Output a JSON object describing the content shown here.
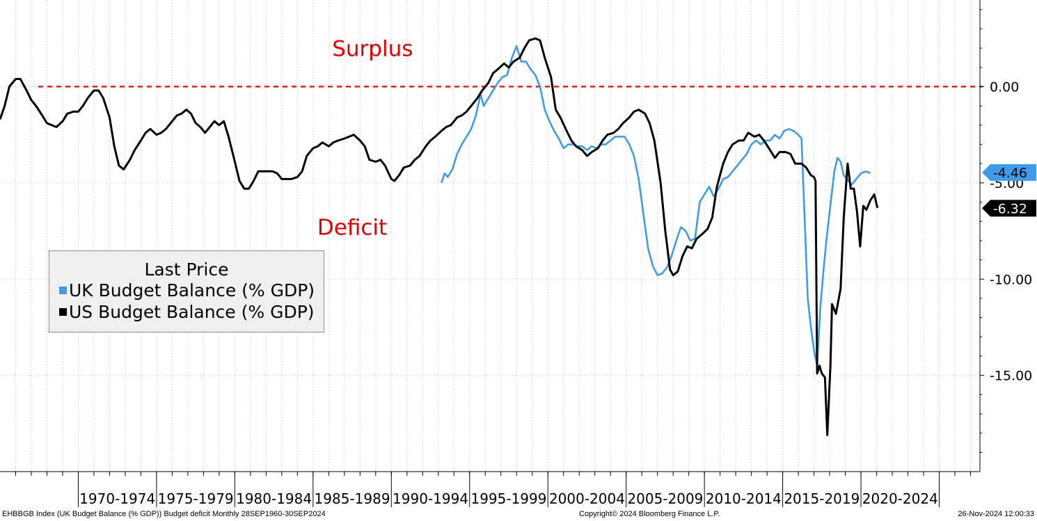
{
  "footer": {
    "left": "EHBBGB Index (UK Budget Balance (% GDP)) Budget deficit  Monthly 28SEP1960-30SEP2024",
    "center": "Copyright© 2024 Bloomberg Finance L.P.",
    "right": "26-Nov-2024 12:00:33"
  },
  "chart_data": {
    "type": "line",
    "x_unit": "year",
    "xlim": [
      1965.0,
      2027.6
    ],
    "ylim": [
      -20,
      4.5
    ],
    "y_ticks": [
      0,
      -5,
      -10,
      -15
    ],
    "y_tick_labels": [
      "0.00",
      "-5.00",
      "-10.00",
      "-15.00"
    ],
    "x_bands": [
      {
        "start": 1970,
        "end": 1975,
        "label": "1970-1974"
      },
      {
        "start": 1975,
        "end": 1980,
        "label": "1975-1979"
      },
      {
        "start": 1980,
        "end": 1985,
        "label": "1980-1984"
      },
      {
        "start": 1985,
        "end": 1990,
        "label": "1985-1989"
      },
      {
        "start": 1990,
        "end": 1995,
        "label": "1990-1994"
      },
      {
        "start": 1995,
        "end": 2000,
        "label": "1995-1999"
      },
      {
        "start": 2000,
        "end": 2005,
        "label": "2000-2004"
      },
      {
        "start": 2005,
        "end": 2010,
        "label": "2005-2009"
      },
      {
        "start": 2010,
        "end": 2015,
        "label": "2010-2014"
      },
      {
        "start": 2015,
        "end": 2020,
        "label": "2015-2019"
      },
      {
        "start": 2020,
        "end": 2025,
        "label": "2020-2024"
      }
    ],
    "grid": true,
    "reference_line": {
      "y": 0,
      "color": "#e00000",
      "style": "dashed"
    },
    "annotations": [
      {
        "text": "Surplus",
        "x": 1988.8,
        "y": 1.6,
        "color": "#e00000"
      },
      {
        "text": "Deficit",
        "x": 1987.5,
        "y": -7.7,
        "color": "#e00000"
      }
    ],
    "legend": {
      "title": "Last Price",
      "position": "middle-left",
      "entries": [
        {
          "label": "UK Budget Balance (% GDP)",
          "color": "#3f9ae8"
        },
        {
          "label": "US Budget Balance (% GDP)",
          "color": "#000000"
        }
      ]
    },
    "series": [
      {
        "name": "US Budget Balance (% GDP)",
        "color": "#000000",
        "last_value": -6.32,
        "last_label": "-6.32",
        "points": [
          [
            1965.0,
            -1.7
          ],
          [
            1965.3,
            -1.0
          ],
          [
            1965.6,
            0.0
          ],
          [
            1966.0,
            0.4
          ],
          [
            1966.3,
            0.4
          ],
          [
            1966.7,
            -0.2
          ],
          [
            1967.0,
            -0.7
          ],
          [
            1967.3,
            -1.0
          ],
          [
            1967.7,
            -1.5
          ],
          [
            1968.0,
            -1.9
          ],
          [
            1968.3,
            -2.0
          ],
          [
            1968.6,
            -2.1
          ],
          [
            1969.0,
            -1.8
          ],
          [
            1969.3,
            -1.4
          ],
          [
            1969.7,
            -1.3
          ],
          [
            1970.0,
            -1.3
          ],
          [
            1970.3,
            -1.0
          ],
          [
            1970.6,
            -0.6
          ],
          [
            1971.0,
            -0.2
          ],
          [
            1971.3,
            -0.2
          ],
          [
            1971.6,
            -0.6
          ],
          [
            1972.0,
            -1.6
          ],
          [
            1972.3,
            -3.1
          ],
          [
            1972.6,
            -4.1
          ],
          [
            1972.9,
            -4.3
          ],
          [
            1973.3,
            -3.8
          ],
          [
            1973.6,
            -3.3
          ],
          [
            1974.0,
            -2.8
          ],
          [
            1974.3,
            -2.4
          ],
          [
            1974.6,
            -2.2
          ],
          [
            1975.0,
            -2.5
          ],
          [
            1975.3,
            -2.4
          ],
          [
            1975.6,
            -2.2
          ],
          [
            1976.0,
            -1.8
          ],
          [
            1976.3,
            -1.5
          ],
          [
            1976.6,
            -1.4
          ],
          [
            1976.9,
            -1.2
          ],
          [
            1977.2,
            -1.4
          ],
          [
            1977.5,
            -1.9
          ],
          [
            1977.8,
            -2.1
          ],
          [
            1978.1,
            -2.4
          ],
          [
            1978.4,
            -2.1
          ],
          [
            1978.7,
            -1.8
          ],
          [
            1979.0,
            -2.0
          ],
          [
            1979.3,
            -1.8
          ],
          [
            1979.6,
            -2.6
          ],
          [
            1980.0,
            -3.9
          ],
          [
            1980.3,
            -4.9
          ],
          [
            1980.6,
            -5.3
          ],
          [
            1980.9,
            -5.3
          ],
          [
            1981.2,
            -4.9
          ],
          [
            1981.5,
            -4.4
          ],
          [
            1981.8,
            -4.4
          ],
          [
            1982.1,
            -4.4
          ],
          [
            1982.4,
            -4.4
          ],
          [
            1982.7,
            -4.5
          ],
          [
            1983.0,
            -4.8
          ],
          [
            1983.3,
            -4.8
          ],
          [
            1983.6,
            -4.8
          ],
          [
            1984.0,
            -4.7
          ],
          [
            1984.3,
            -4.4
          ],
          [
            1984.6,
            -3.6
          ],
          [
            1985.0,
            -3.2
          ],
          [
            1985.3,
            -3.1
          ],
          [
            1985.6,
            -2.9
          ],
          [
            1986.0,
            -3.1
          ],
          [
            1986.3,
            -2.9
          ],
          [
            1986.6,
            -2.8
          ],
          [
            1987.0,
            -2.7
          ],
          [
            1987.3,
            -2.6
          ],
          [
            1987.6,
            -2.5
          ],
          [
            1988.0,
            -2.8
          ],
          [
            1988.3,
            -3.1
          ],
          [
            1988.6,
            -3.8
          ],
          [
            1989.0,
            -3.9
          ],
          [
            1989.3,
            -3.8
          ],
          [
            1989.6,
            -4.1
          ],
          [
            1990.0,
            -4.8
          ],
          [
            1990.2,
            -4.9
          ],
          [
            1990.5,
            -4.6
          ],
          [
            1990.8,
            -4.2
          ],
          [
            1991.2,
            -4.1
          ],
          [
            1991.5,
            -3.8
          ],
          [
            1991.8,
            -3.6
          ],
          [
            1992.2,
            -3.1
          ],
          [
            1992.5,
            -2.8
          ],
          [
            1992.8,
            -2.6
          ],
          [
            1993.2,
            -2.3
          ],
          [
            1993.5,
            -2.1
          ],
          [
            1993.8,
            -2.0
          ],
          [
            1994.2,
            -1.6
          ],
          [
            1994.5,
            -1.5
          ],
          [
            1994.8,
            -1.3
          ],
          [
            1995.2,
            -0.9
          ],
          [
            1995.5,
            -0.6
          ],
          [
            1995.8,
            -0.2
          ],
          [
            1996.2,
            0.2
          ],
          [
            1996.5,
            0.7
          ],
          [
            1996.8,
            0.9
          ],
          [
            1997.2,
            1.2
          ],
          [
            1997.5,
            1.0
          ],
          [
            1997.8,
            1.3
          ],
          [
            1998.2,
            1.5
          ],
          [
            1998.5,
            2.0
          ],
          [
            1998.8,
            2.4
          ],
          [
            1999.2,
            2.5
          ],
          [
            1999.5,
            2.4
          ],
          [
            1999.8,
            1.5
          ],
          [
            2000.2,
            0.5
          ],
          [
            2000.5,
            -1.2
          ],
          [
            2000.8,
            -1.6
          ],
          [
            2001.2,
            -2.3
          ],
          [
            2001.5,
            -2.8
          ],
          [
            2001.8,
            -3.1
          ],
          [
            2002.2,
            -3.3
          ],
          [
            2002.5,
            -3.6
          ],
          [
            2002.8,
            -3.4
          ],
          [
            2003.2,
            -3.2
          ],
          [
            2003.5,
            -2.8
          ],
          [
            2003.8,
            -2.5
          ],
          [
            2004.2,
            -2.4
          ],
          [
            2004.5,
            -2.2
          ],
          [
            2004.8,
            -1.9
          ],
          [
            2005.2,
            -1.6
          ],
          [
            2005.5,
            -1.3
          ],
          [
            2005.8,
            -1.2
          ],
          [
            2006.2,
            -1.4
          ],
          [
            2006.5,
            -1.9
          ],
          [
            2006.8,
            -2.8
          ],
          [
            2007.2,
            -5.0
          ],
          [
            2007.5,
            -7.5
          ],
          [
            2007.8,
            -9.5
          ],
          [
            2008.0,
            -9.8
          ],
          [
            2008.3,
            -9.6
          ],
          [
            2008.6,
            -8.8
          ],
          [
            2008.9,
            -8.3
          ],
          [
            2009.2,
            -8.4
          ],
          [
            2009.5,
            -7.9
          ],
          [
            2009.8,
            -7.7
          ],
          [
            2010.2,
            -7.4
          ],
          [
            2010.5,
            -6.8
          ],
          [
            2010.8,
            -5.2
          ],
          [
            2011.2,
            -4.0
          ],
          [
            2011.5,
            -3.4
          ],
          [
            2011.8,
            -3.0
          ],
          [
            2012.2,
            -2.8
          ],
          [
            2012.5,
            -2.8
          ],
          [
            2012.8,
            -2.4
          ],
          [
            2013.2,
            -2.6
          ],
          [
            2013.5,
            -2.5
          ],
          [
            2013.8,
            -2.8
          ],
          [
            2014.2,
            -3.3
          ],
          [
            2014.5,
            -3.7
          ],
          [
            2014.8,
            -3.4
          ],
          [
            2015.2,
            -3.4
          ],
          [
            2015.5,
            -3.5
          ],
          [
            2015.8,
            -4.0
          ],
          [
            2016.2,
            -4.0
          ],
          [
            2016.5,
            -4.2
          ],
          [
            2016.8,
            -4.6
          ],
          [
            2017.0,
            -4.7
          ],
          [
            2017.1,
            -4.9
          ],
          [
            2017.2,
            -14.9
          ],
          [
            2017.35,
            -14.5
          ],
          [
            2017.5,
            -14.9
          ],
          [
            2017.7,
            -15.1
          ],
          [
            2017.85,
            -18.1
          ],
          [
            2018.05,
            -14.5
          ],
          [
            2018.15,
            -11.3
          ],
          [
            2018.4,
            -11.8
          ],
          [
            2018.7,
            -10.5
          ],
          [
            2018.9,
            -6.8
          ],
          [
            2019.15,
            -4.0
          ],
          [
            2019.35,
            -5.3
          ],
          [
            2019.55,
            -5.3
          ],
          [
            2019.75,
            -6.5
          ],
          [
            2019.95,
            -8.3
          ],
          [
            2020.15,
            -6.2
          ],
          [
            2020.35,
            -6.4
          ],
          [
            2020.6,
            -5.9
          ],
          [
            2020.85,
            -5.6
          ],
          [
            2021.05,
            -6.3
          ]
        ]
      },
      {
        "name": "UK Budget Balance (% GDP)",
        "color": "#3f9ae8",
        "last_value": -4.46,
        "last_label": "-4.46",
        "points": [
          [
            1993.2,
            -5.0
          ],
          [
            1993.4,
            -4.5
          ],
          [
            1993.6,
            -4.7
          ],
          [
            1993.9,
            -4.3
          ],
          [
            1994.2,
            -3.5
          ],
          [
            1994.5,
            -3.0
          ],
          [
            1994.8,
            -2.6
          ],
          [
            1995.1,
            -2.2
          ],
          [
            1995.4,
            -1.5
          ],
          [
            1995.7,
            -0.4
          ],
          [
            1995.9,
            -1.0
          ],
          [
            1996.2,
            -0.6
          ],
          [
            1996.5,
            -0.2
          ],
          [
            1996.8,
            0.2
          ],
          [
            1997.1,
            0.5
          ],
          [
            1997.4,
            0.6
          ],
          [
            1997.7,
            1.5
          ],
          [
            1998.0,
            2.1
          ],
          [
            1998.3,
            1.3
          ],
          [
            1998.6,
            1.3
          ],
          [
            1998.9,
            0.9
          ],
          [
            1999.2,
            0.6
          ],
          [
            1999.5,
            0.0
          ],
          [
            1999.8,
            -1.2
          ],
          [
            2000.1,
            -1.8
          ],
          [
            2000.4,
            -2.3
          ],
          [
            2000.7,
            -2.7
          ],
          [
            2001.0,
            -3.2
          ],
          [
            2001.3,
            -3.0
          ],
          [
            2001.6,
            -3.0
          ],
          [
            2001.9,
            -3.1
          ],
          [
            2002.2,
            -3.1
          ],
          [
            2002.5,
            -3.3
          ],
          [
            2002.8,
            -3.1
          ],
          [
            2003.1,
            -3.2
          ],
          [
            2003.4,
            -3.0
          ],
          [
            2003.7,
            -3.0
          ],
          [
            2004.0,
            -2.8
          ],
          [
            2004.3,
            -2.6
          ],
          [
            2004.6,
            -2.6
          ],
          [
            2004.9,
            -2.6
          ],
          [
            2005.2,
            -3.0
          ],
          [
            2005.5,
            -3.6
          ],
          [
            2005.8,
            -4.8
          ],
          [
            2006.1,
            -6.6
          ],
          [
            2006.4,
            -8.4
          ],
          [
            2006.7,
            -9.3
          ],
          [
            2007.0,
            -9.8
          ],
          [
            2007.3,
            -9.7
          ],
          [
            2007.6,
            -9.4
          ],
          [
            2007.9,
            -8.8
          ],
          [
            2008.2,
            -8.0
          ],
          [
            2008.5,
            -7.3
          ],
          [
            2008.8,
            -7.5
          ],
          [
            2009.1,
            -8.0
          ],
          [
            2009.4,
            -7.9
          ],
          [
            2009.7,
            -6.0
          ],
          [
            2010.0,
            -5.6
          ],
          [
            2010.3,
            -5.2
          ],
          [
            2010.6,
            -5.7
          ],
          [
            2010.9,
            -5.3
          ],
          [
            2011.2,
            -4.8
          ],
          [
            2011.5,
            -4.7
          ],
          [
            2011.8,
            -4.4
          ],
          [
            2012.1,
            -4.1
          ],
          [
            2012.4,
            -3.8
          ],
          [
            2012.7,
            -3.5
          ],
          [
            2013.0,
            -3.0
          ],
          [
            2013.3,
            -2.8
          ],
          [
            2013.6,
            -3.0
          ],
          [
            2013.9,
            -2.8
          ],
          [
            2014.2,
            -2.8
          ],
          [
            2014.5,
            -2.5
          ],
          [
            2014.8,
            -2.7
          ],
          [
            2015.1,
            -2.3
          ],
          [
            2015.4,
            -2.2
          ],
          [
            2015.7,
            -2.3
          ],
          [
            2016.0,
            -2.5
          ],
          [
            2016.2,
            -2.7
          ],
          [
            2016.4,
            -6.8
          ],
          [
            2016.6,
            -11.0
          ],
          [
            2016.8,
            -12.5
          ],
          [
            2017.0,
            -13.7
          ],
          [
            2017.2,
            -14.5
          ],
          [
            2017.4,
            -11.5
          ],
          [
            2017.6,
            -9.6
          ],
          [
            2017.8,
            -7.9
          ],
          [
            2018.1,
            -5.8
          ],
          [
            2018.3,
            -4.4
          ],
          [
            2018.5,
            -3.7
          ],
          [
            2018.7,
            -3.9
          ],
          [
            2018.9,
            -4.6
          ],
          [
            2019.1,
            -4.8
          ],
          [
            2019.4,
            -5.1
          ],
          [
            2019.7,
            -4.8
          ],
          [
            2020.0,
            -4.5
          ],
          [
            2020.3,
            -4.4
          ],
          [
            2020.6,
            -4.5
          ]
        ]
      }
    ]
  }
}
